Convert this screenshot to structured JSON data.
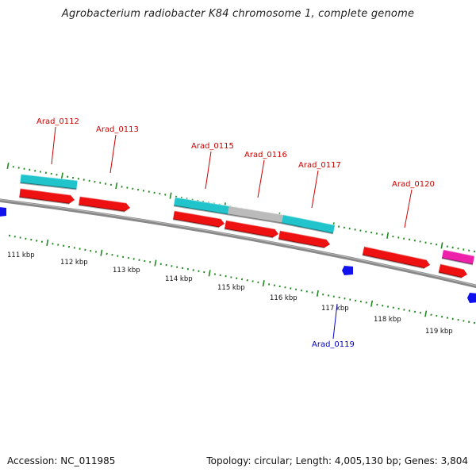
{
  "title": "Agrobacterium radiobacter K84 chromosome 1, complete genome",
  "footer": {
    "accession": "Accession: NC_011985",
    "topology": "Topology: circular; Length: 4,005,130 bp; Genes: 3,804"
  },
  "kbp_ticks": [
    "111 kbp",
    "112 kbp",
    "113 kbp",
    "114 kbp",
    "115 kbp",
    "116 kbp",
    "117 kbp",
    "118 kbp",
    "119 kbp"
  ],
  "gene_labels": [
    {
      "name": "Arad_0112",
      "color": "#cc0000"
    },
    {
      "name": "Arad_0113",
      "color": "#cc0000"
    },
    {
      "name": "Arad_0115",
      "color": "#cc0000"
    },
    {
      "name": "Arad_0116",
      "color": "#cc0000"
    },
    {
      "name": "Arad_0117",
      "color": "#cc0000"
    },
    {
      "name": "Arad_0120",
      "color": "#cc0000"
    },
    {
      "name": "Arad_0119",
      "color": "#0000cc"
    }
  ],
  "colors": {
    "cds_red": "#ee1111",
    "cds_cyan": "#22c4cc",
    "cds_gray": "#bbbbbb",
    "cds_magenta": "#ee22aa",
    "cds_blue": "#1111ee",
    "backbone": "#777777",
    "tick_green": "#228822"
  }
}
